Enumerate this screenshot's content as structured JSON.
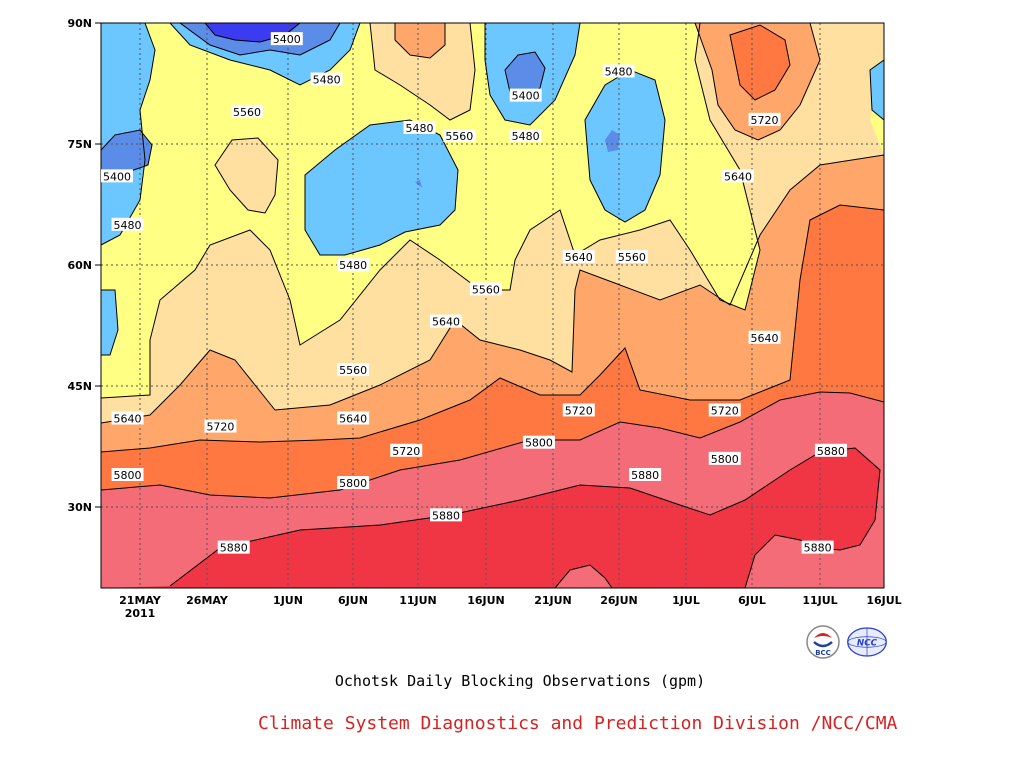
{
  "chart_data": {
    "type": "heatmap",
    "title": "Ochotsk Daily Blocking Observations (gpm)",
    "credit": "Climate System Diagnostics and Prediction Division /NCC/CMA",
    "x_ticks": [
      "21MAY",
      "26MAY",
      "1JUN",
      "6JUN",
      "11JUN",
      "16JUN",
      "21JUN",
      "26JUN",
      "1JUL",
      "6JUL",
      "11JUL",
      "16JUL"
    ],
    "x_year": "2011",
    "y_ticks": [
      "90N",
      "75N",
      "60N",
      "45N",
      "30N"
    ],
    "xlim": [
      "2011-05-18",
      "2011-07-16"
    ],
    "ylim": [
      20,
      90
    ],
    "grid": true,
    "levels": [
      5400,
      5480,
      5560,
      5640,
      5720,
      5800,
      5880
    ],
    "level_colors": [
      "#3b3bf0",
      "#5b8de8",
      "#6cc6ff",
      "#ffff84",
      "#ffe0a0",
      "#ffa76a",
      "#ff7741",
      "#f46c78",
      "#f03545"
    ],
    "contour_labels": [
      {
        "text": "5400",
        "date": "2011-06-01",
        "lat": 88
      },
      {
        "text": "5480",
        "date": "2011-06-04",
        "lat": 83
      },
      {
        "text": "5560",
        "date": "2011-05-29",
        "lat": 79
      },
      {
        "text": "5400",
        "date": "2011-05-18",
        "lat": 71
      },
      {
        "text": "5480",
        "date": "2011-05-20",
        "lat": 65
      },
      {
        "text": "5480",
        "date": "2011-06-11",
        "lat": 77
      },
      {
        "text": "5560",
        "date": "2011-06-14",
        "lat": 76
      },
      {
        "text": "5400",
        "date": "2011-06-19",
        "lat": 81
      },
      {
        "text": "5480",
        "date": "2011-06-19",
        "lat": 76
      },
      {
        "text": "5480",
        "date": "2011-06-26",
        "lat": 84
      },
      {
        "text": "5720",
        "date": "2011-07-07",
        "lat": 78
      },
      {
        "text": "5640",
        "date": "2011-07-05",
        "lat": 71
      },
      {
        "text": "5560",
        "date": "2011-06-27",
        "lat": 61
      },
      {
        "text": "5640",
        "date": "2011-06-23",
        "lat": 61
      },
      {
        "text": "5480",
        "date": "2011-06-06",
        "lat": 60
      },
      {
        "text": "5560",
        "date": "2011-06-16",
        "lat": 57
      },
      {
        "text": "5640",
        "date": "2011-06-13",
        "lat": 53
      },
      {
        "text": "5640",
        "date": "2011-07-07",
        "lat": 51
      },
      {
        "text": "5560",
        "date": "2011-06-06",
        "lat": 47
      },
      {
        "text": "5640",
        "date": "2011-05-20",
        "lat": 41
      },
      {
        "text": "5720",
        "date": "2011-05-27",
        "lat": 40
      },
      {
        "text": "5640",
        "date": "2011-06-06",
        "lat": 41
      },
      {
        "text": "5720",
        "date": "2011-06-10",
        "lat": 37
      },
      {
        "text": "5720",
        "date": "2011-06-23",
        "lat": 42
      },
      {
        "text": "5720",
        "date": "2011-07-04",
        "lat": 42
      },
      {
        "text": "5800",
        "date": "2011-06-20",
        "lat": 38
      },
      {
        "text": "5800",
        "date": "2011-07-04",
        "lat": 36
      },
      {
        "text": "5880",
        "date": "2011-07-12",
        "lat": 37
      },
      {
        "text": "5800",
        "date": "2011-05-20",
        "lat": 34
      },
      {
        "text": "5800",
        "date": "2011-06-06",
        "lat": 33
      },
      {
        "text": "5880",
        "date": "2011-06-28",
        "lat": 34
      },
      {
        "text": "5880",
        "date": "2011-06-13",
        "lat": 29
      },
      {
        "text": "5880",
        "date": "2011-05-28",
        "lat": 25
      },
      {
        "text": "5880",
        "date": "2011-07-11",
        "lat": 25
      }
    ]
  },
  "logos": {
    "left": "BCC",
    "right": "NCC"
  }
}
